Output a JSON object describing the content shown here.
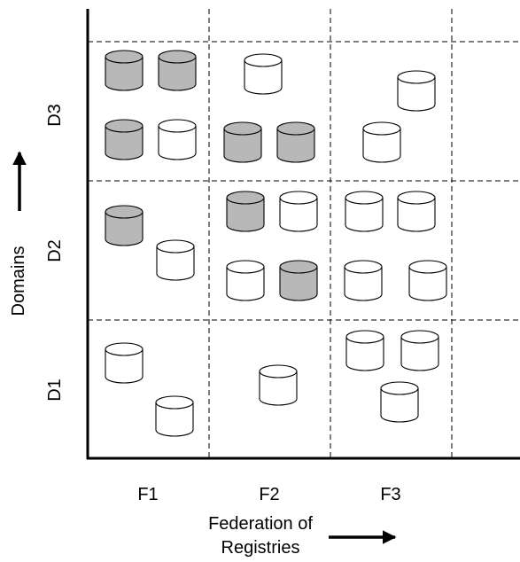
{
  "axes": {
    "x_title_line1": "Federation of",
    "x_title_line2": "Registries",
    "y_title": "Domains"
  },
  "columns": [
    "F1",
    "F2",
    "F3"
  ],
  "rows": [
    "D1",
    "D2",
    "D3"
  ],
  "colors": {
    "filled": "#b8b8b8",
    "empty": "#ffffff",
    "stroke": "#000000"
  },
  "cells": [
    {
      "row": "D3",
      "column": "F1",
      "filled": 3,
      "empty": 1
    },
    {
      "row": "D3",
      "column": "F2",
      "filled": 2,
      "empty": 1
    },
    {
      "row": "D3",
      "column": "F3",
      "filled": 0,
      "empty": 2
    },
    {
      "row": "D2",
      "column": "F1",
      "filled": 1,
      "empty": 1
    },
    {
      "row": "D2",
      "column": "F2",
      "filled": 2,
      "empty": 2
    },
    {
      "row": "D2",
      "column": "F3",
      "filled": 0,
      "empty": 4
    },
    {
      "row": "D1",
      "column": "F1",
      "filled": 0,
      "empty": 2
    },
    {
      "row": "D1",
      "column": "F2",
      "filled": 0,
      "empty": 1
    },
    {
      "row": "D1",
      "column": "F3",
      "filled": 0,
      "empty": 3
    }
  ]
}
